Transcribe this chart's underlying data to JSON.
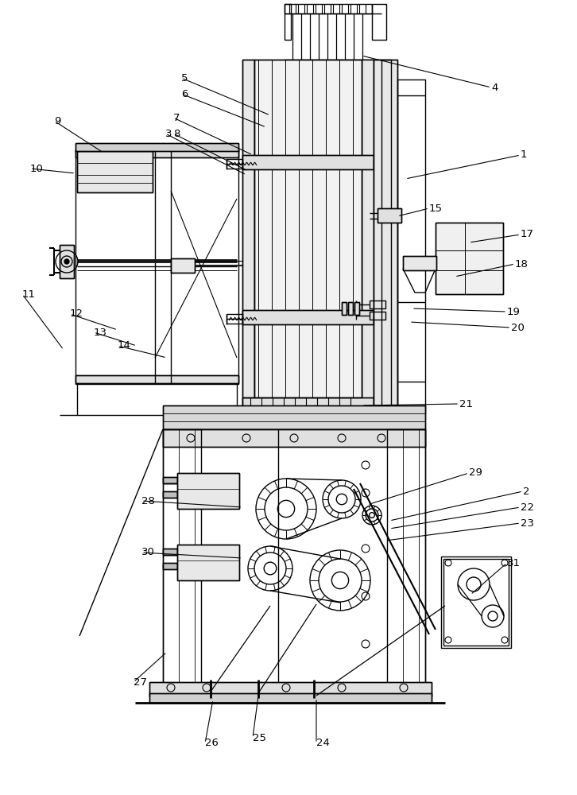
{
  "bg_color": "#ffffff",
  "lc": "#000000",
  "lw": 1.0,
  "label_pairs": [
    [
      "1",
      655,
      195,
      510,
      225
    ],
    [
      "2",
      658,
      618,
      490,
      655
    ],
    [
      "3",
      208,
      168,
      310,
      220
    ],
    [
      "4",
      618,
      110,
      455,
      70
    ],
    [
      "5",
      228,
      98,
      340,
      145
    ],
    [
      "6",
      228,
      118,
      335,
      160
    ],
    [
      "7",
      218,
      148,
      318,
      195
    ],
    [
      "8",
      218,
      168,
      312,
      215
    ],
    [
      "9",
      68,
      152,
      130,
      192
    ],
    [
      "10",
      38,
      212,
      95,
      218
    ],
    [
      "11",
      28,
      370,
      80,
      440
    ],
    [
      "12",
      88,
      395,
      148,
      415
    ],
    [
      "13",
      118,
      418,
      172,
      435
    ],
    [
      "14",
      148,
      435,
      210,
      450
    ],
    [
      "15",
      540,
      262,
      500,
      272
    ],
    [
      "17",
      655,
      295,
      590,
      305
    ],
    [
      "18",
      648,
      332,
      572,
      348
    ],
    [
      "19",
      638,
      392,
      518,
      388
    ],
    [
      "20",
      643,
      412,
      515,
      405
    ],
    [
      "21",
      578,
      508,
      455,
      510
    ],
    [
      "22",
      655,
      638,
      490,
      665
    ],
    [
      "23",
      655,
      658,
      485,
      680
    ],
    [
      "24",
      398,
      935,
      398,
      878
    ],
    [
      "25",
      318,
      928,
      325,
      875
    ],
    [
      "26",
      258,
      935,
      268,
      880
    ],
    [
      "27",
      168,
      858,
      210,
      820
    ],
    [
      "28",
      178,
      630,
      305,
      638
    ],
    [
      "29",
      590,
      595,
      462,
      635
    ],
    [
      "30",
      178,
      695,
      305,
      702
    ],
    [
      "31",
      638,
      708,
      592,
      748
    ]
  ]
}
